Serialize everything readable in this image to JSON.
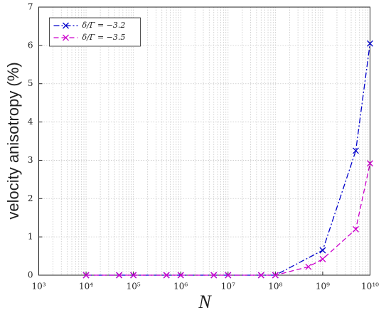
{
  "chart_data": {
    "type": "line",
    "xlabel": "N",
    "ylabel": "velocity anisotropy (%)",
    "xscale": "log",
    "xlim": [
      1000,
      10000000000
    ],
    "ylim": [
      0,
      7
    ],
    "xticks": [
      {
        "value": 1000,
        "label": "10³"
      },
      {
        "value": 10000,
        "label": "10⁴"
      },
      {
        "value": 100000,
        "label": "10⁵"
      },
      {
        "value": 1000000,
        "label": "10⁶"
      },
      {
        "value": 10000000,
        "label": "10⁷"
      },
      {
        "value": 100000000,
        "label": "10⁸"
      },
      {
        "value": 1000000000,
        "label": "10⁹"
      },
      {
        "value": 10000000000,
        "label": "10¹⁰"
      }
    ],
    "yticks": [
      0,
      1,
      2,
      3,
      4,
      5,
      6,
      7
    ],
    "grid": true,
    "minor_grid": true,
    "legend": "upper left",
    "series": [
      {
        "name": "δ/Γ = −3.2",
        "color": "#0000cc",
        "linestyle": "dashdot",
        "x": [
          10000,
          50000,
          100000,
          500000,
          1000000,
          5000000,
          10000000,
          50000000,
          100000000,
          1000000000,
          5000000000,
          10000000000
        ],
        "values": [
          0,
          0,
          0,
          0,
          0,
          0,
          0,
          0,
          0,
          0.65,
          3.25,
          6.05
        ]
      },
      {
        "name": "δ/Γ = −3.5",
        "color": "#cc00cc",
        "linestyle": "dashed",
        "x": [
          10000,
          50000,
          100000,
          500000,
          1000000,
          5000000,
          10000000,
          50000000,
          100000000,
          500000000,
          1000000000,
          5000000000,
          10000000000
        ],
        "values": [
          0,
          0,
          0,
          0,
          0,
          0,
          0,
          0,
          0,
          0.22,
          0.42,
          1.2,
          2.92
        ]
      }
    ]
  }
}
